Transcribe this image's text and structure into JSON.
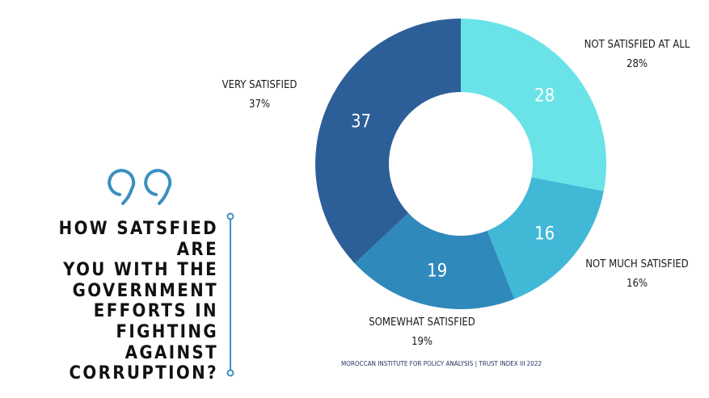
{
  "question": "HOW SATSFIED ARE YOU WITH THE GOVERNMENT EFFORTS IN FIGHTING AGAINST CORRUPTION?",
  "question_lines": [
    "HOW SATSFIED ARE",
    "YOU WITH THE",
    "GOVERNMENT",
    "EFFORTS IN FIGHTING",
    "AGAINST",
    "CORRUPTION?"
  ],
  "source": "MOROCCAN INSTITUTE FOR POLICY ANALYSIS | TRUST INDEX III 2022",
  "icons": {
    "quote": "quote-icon",
    "divider": "divider-line-icon"
  },
  "colors": {
    "accent": "#3a8fbf",
    "text": "#111111"
  },
  "chart_data": {
    "type": "pie",
    "donut": true,
    "title": "",
    "slices": [
      {
        "name": "NOT SATISFIED AT ALL",
        "value": 28,
        "percent_label": "28%",
        "color": "#69e3e8"
      },
      {
        "name": "NOT MUCH SATISFIED",
        "value": 16,
        "percent_label": "16%",
        "color": "#42b8d7"
      },
      {
        "name": "SOMEWHAT SATISFIED",
        "value": 19,
        "percent_label": "19%",
        "color": "#2f89bb"
      },
      {
        "name": "VERY SATISFIED",
        "value": 37,
        "percent_label": "37%",
        "color": "#2c5f98"
      }
    ]
  }
}
